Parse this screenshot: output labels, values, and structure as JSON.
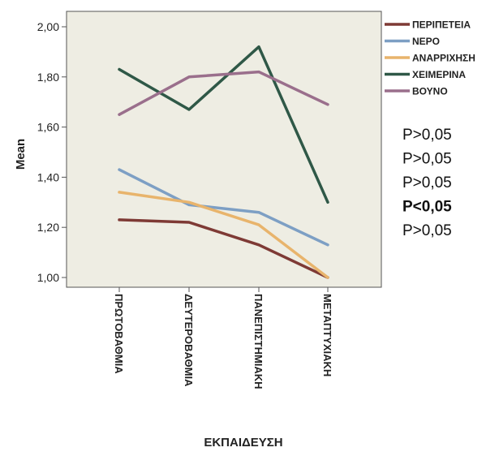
{
  "chart_data": {
    "type": "line",
    "title": "",
    "xlabel": "ΕΚΠΑΙΔΕΥΣΗ",
    "ylabel": "Mean",
    "ylim": [
      1.0,
      2.0
    ],
    "yticks": [
      "1,00",
      "1,20",
      "1,40",
      "1,60",
      "1,80",
      "2,00"
    ],
    "yticks_values": [
      1.0,
      1.2,
      1.4,
      1.6,
      1.8,
      2.0
    ],
    "categories": [
      "ΠΡΩΤΟΒΑΘΜΙΑ",
      "ΔΕΥΤΕΡΟΒΑΘΜΙΑ",
      "ΠΑΝΕΠΙΣΤΗΜΙΑΚΗ",
      "ΜΕΤΑΠΤΥΧΙΑΚΗ"
    ],
    "grid": false,
    "legend_position": "top-right",
    "series": [
      {
        "name": "ΠΕΡΙΠΕΤΕΙΑ",
        "color": "#7e3a35",
        "values": [
          1.23,
          1.22,
          1.13,
          1.0
        ]
      },
      {
        "name": "ΝΕΡΟ",
        "color": "#7d9fc4",
        "values": [
          1.43,
          1.29,
          1.26,
          1.13
        ]
      },
      {
        "name": "ΑΝΑΡΡΙΧΗΣΗ",
        "color": "#e8b46c",
        "values": [
          1.34,
          1.3,
          1.21,
          1.0
        ]
      },
      {
        "name": "ΧΕΙΜΕΡΙΝΑ",
        "color": "#2f5847",
        "values": [
          1.83,
          1.67,
          1.92,
          1.3
        ]
      },
      {
        "name": "ΒΟΥΝΟ",
        "color": "#9a6f8c",
        "values": [
          1.65,
          1.8,
          1.82,
          1.69
        ]
      }
    ],
    "annotations": [
      {
        "text": "P>0,05",
        "bold": false
      },
      {
        "text": "P>0,05",
        "bold": false
      },
      {
        "text": "P>0,05",
        "bold": false
      },
      {
        "text": "P<0,05",
        "bold": true
      },
      {
        "text": "P>0,05",
        "bold": false
      }
    ]
  },
  "colors": {
    "plot_background": "#eeede3",
    "axis": "#555555"
  }
}
